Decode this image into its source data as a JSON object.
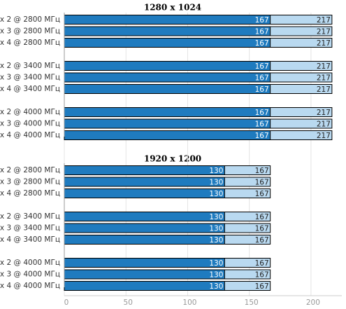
{
  "chart_data": [
    {
      "type": "bar",
      "title": "1280 x 1024",
      "categories": [
        "x 2 @ 2800 МГц",
        "x 3 @ 2800 МГц",
        "x 4 @ 2800 МГц",
        "x 2 @ 3400 МГц",
        "x 3 @ 3400 МГц",
        "x 4 @ 3400 МГц",
        "x 2 @ 4000 МГц",
        "x 3 @ 4000 МГц",
        "x 4 @ 4000 МГц"
      ],
      "series": [
        {
          "color": "#b9d9f0",
          "values": [
            217,
            217,
            217,
            217,
            217,
            217,
            217,
            217,
            217
          ]
        },
        {
          "color": "#1f7bbf",
          "values": [
            167,
            167,
            167,
            167,
            167,
            167,
            167,
            167,
            167
          ]
        }
      ],
      "xlim": [
        0,
        225
      ]
    },
    {
      "type": "bar",
      "title": "1920 x 1200",
      "categories": [
        "x 2 @ 2800 МГц",
        "x 3 @ 2800 МГц",
        "x 4 @ 2800 МГц",
        "x 2 @ 3400 МГц",
        "x 3 @ 3400 МГц",
        "x 4 @ 3400 МГц",
        "x 2 @ 4000 МГц",
        "x 3 @ 4000 МГц",
        "x 4 @ 4000 МГц"
      ],
      "series": [
        {
          "color": "#b9d9f0",
          "values": [
            167,
            167,
            167,
            167,
            167,
            167,
            167,
            167,
            167
          ]
        },
        {
          "color": "#1f7bbf",
          "values": [
            130,
            130,
            130,
            130,
            130,
            130,
            130,
            130,
            130
          ]
        }
      ],
      "xlim": [
        0,
        225
      ],
      "xticks": [
        0,
        50,
        100,
        150,
        200
      ],
      "grid": true
    }
  ]
}
